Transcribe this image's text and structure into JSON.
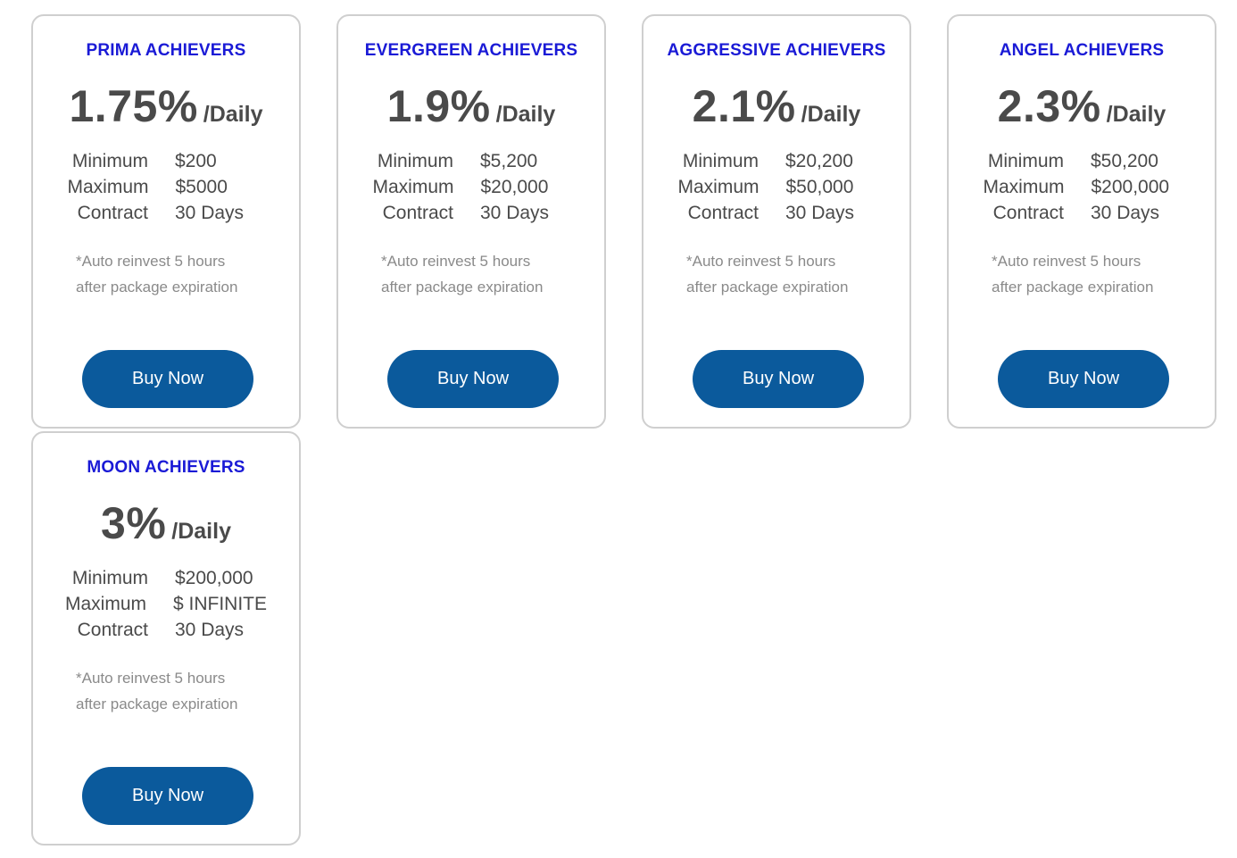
{
  "plans": [
    {
      "title": "PRIMA ACHIEVERS",
      "rate": "1.75%",
      "rate_unit": "/Daily",
      "minimum_label": "Minimum",
      "minimum_value": "$200",
      "maximum_label": "Maximum",
      "maximum_value": "$5000",
      "contract_label": "Contract",
      "contract_value": "30 Days",
      "note_line1": "*Auto reinvest 5 hours",
      "note_line2": "after package expiration",
      "button_label": "Buy Now"
    },
    {
      "title": "EVERGREEN ACHIEVERS",
      "rate": "1.9%",
      "rate_unit": "/Daily",
      "minimum_label": "Minimum",
      "minimum_value": "$5,200",
      "maximum_label": "Maximum",
      "maximum_value": "$20,000",
      "contract_label": "Contract",
      "contract_value": "30 Days",
      "note_line1": "*Auto reinvest 5 hours",
      "note_line2": "after package expiration",
      "button_label": "Buy Now"
    },
    {
      "title": "AGGRESSIVE ACHIEVERS",
      "rate": "2.1%",
      "rate_unit": "/Daily",
      "minimum_label": "Minimum",
      "minimum_value": "$20,200",
      "maximum_label": "Maximum",
      "maximum_value": "$50,000",
      "contract_label": "Contract",
      "contract_value": "30 Days",
      "note_line1": "*Auto reinvest 5 hours",
      "note_line2": "after package expiration",
      "button_label": "Buy Now"
    },
    {
      "title": "ANGEL ACHIEVERS",
      "rate": "2.3%",
      "rate_unit": "/Daily",
      "minimum_label": "Minimum",
      "minimum_value": "$50,200",
      "maximum_label": "Maximum",
      "maximum_value": "$200,000",
      "contract_label": "Contract",
      "contract_value": "30 Days",
      "note_line1": "*Auto reinvest 5 hours",
      "note_line2": "after package expiration",
      "button_label": "Buy Now"
    },
    {
      "title": "MOON ACHIEVERS",
      "rate": "3%",
      "rate_unit": "/Daily",
      "minimum_label": "Minimum",
      "minimum_value": "$200,000",
      "maximum_label": "Maximum",
      "maximum_value": "$ INFINITE",
      "contract_label": "Contract",
      "contract_value": "30 Days",
      "note_line1": "*Auto reinvest 5 hours",
      "note_line2": "after package expiration",
      "button_label": "Buy Now"
    }
  ],
  "colors": {
    "title": "#1a1ad6",
    "text": "#4a4a4a",
    "note": "#8a8a8a",
    "button": "#0b5a9c",
    "card_border": "#cfcfcf"
  }
}
